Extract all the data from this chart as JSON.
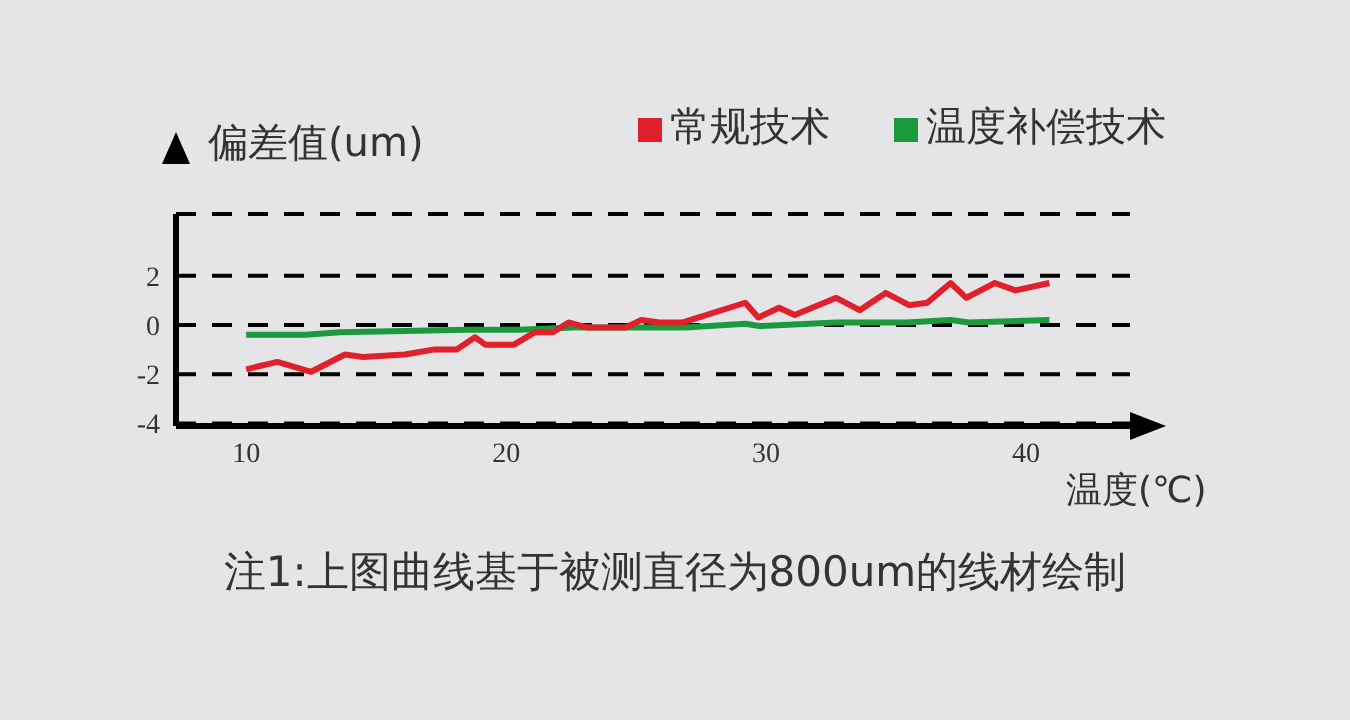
{
  "chart_data": {
    "type": "line",
    "ylabel": "偏差值(um)",
    "xlabel": "温度(℃)",
    "annotations": [
      "注1:上图曲线基于被测直径为800um的线材绘制"
    ],
    "xlim": [
      7.3,
      44
    ],
    "xticks": [
      10,
      20,
      30,
      40
    ],
    "ylim": [
      -4.1,
      4.5
    ],
    "yticks": [
      -4,
      -2,
      0,
      2
    ],
    "grid": "y",
    "legend": "top right",
    "marker": "none",
    "line_style": "solid",
    "series": [
      {
        "name": "温度补偿技术",
        "color": "#1a9a3c",
        "x": [
          10,
          12.3,
          13.6,
          18.5,
          20.5,
          22.6,
          26.9,
          29.2,
          29.8,
          32.7,
          35.4,
          37.1,
          37.8,
          40.9
        ],
        "values": [
          -0.4,
          -0.4,
          -0.3,
          -0.2,
          -0.2,
          -0.1,
          -0.1,
          0.05,
          -0.05,
          0.1,
          0.1,
          0.2,
          0.1,
          0.2
        ]
      },
      {
        "name": "常规技术",
        "color": "#e0202a",
        "x": [
          10,
          11.2,
          12.5,
          13.8,
          14.5,
          16.1,
          17.2,
          18.1,
          18.8,
          19.2,
          20.3,
          21.1,
          21.8,
          22.4,
          23.1,
          24.6,
          25.2,
          25.9,
          26.8,
          29.2,
          29.7,
          30.5,
          31.1,
          32.7,
          33.6,
          34.6,
          35.5,
          36.2,
          37.1,
          37.7,
          38.8,
          39.6,
          40.9
        ],
        "values": [
          -1.8,
          -1.5,
          -1.9,
          -1.2,
          -1.3,
          -1.2,
          -1.0,
          -1.0,
          -0.5,
          -0.8,
          -0.8,
          -0.3,
          -0.3,
          0.1,
          -0.1,
          -0.1,
          0.2,
          0.1,
          0.1,
          0.9,
          0.3,
          0.7,
          0.4,
          1.1,
          0.6,
          1.3,
          0.8,
          0.9,
          1.7,
          1.1,
          1.7,
          1.4,
          1.7
        ]
      }
    ]
  }
}
